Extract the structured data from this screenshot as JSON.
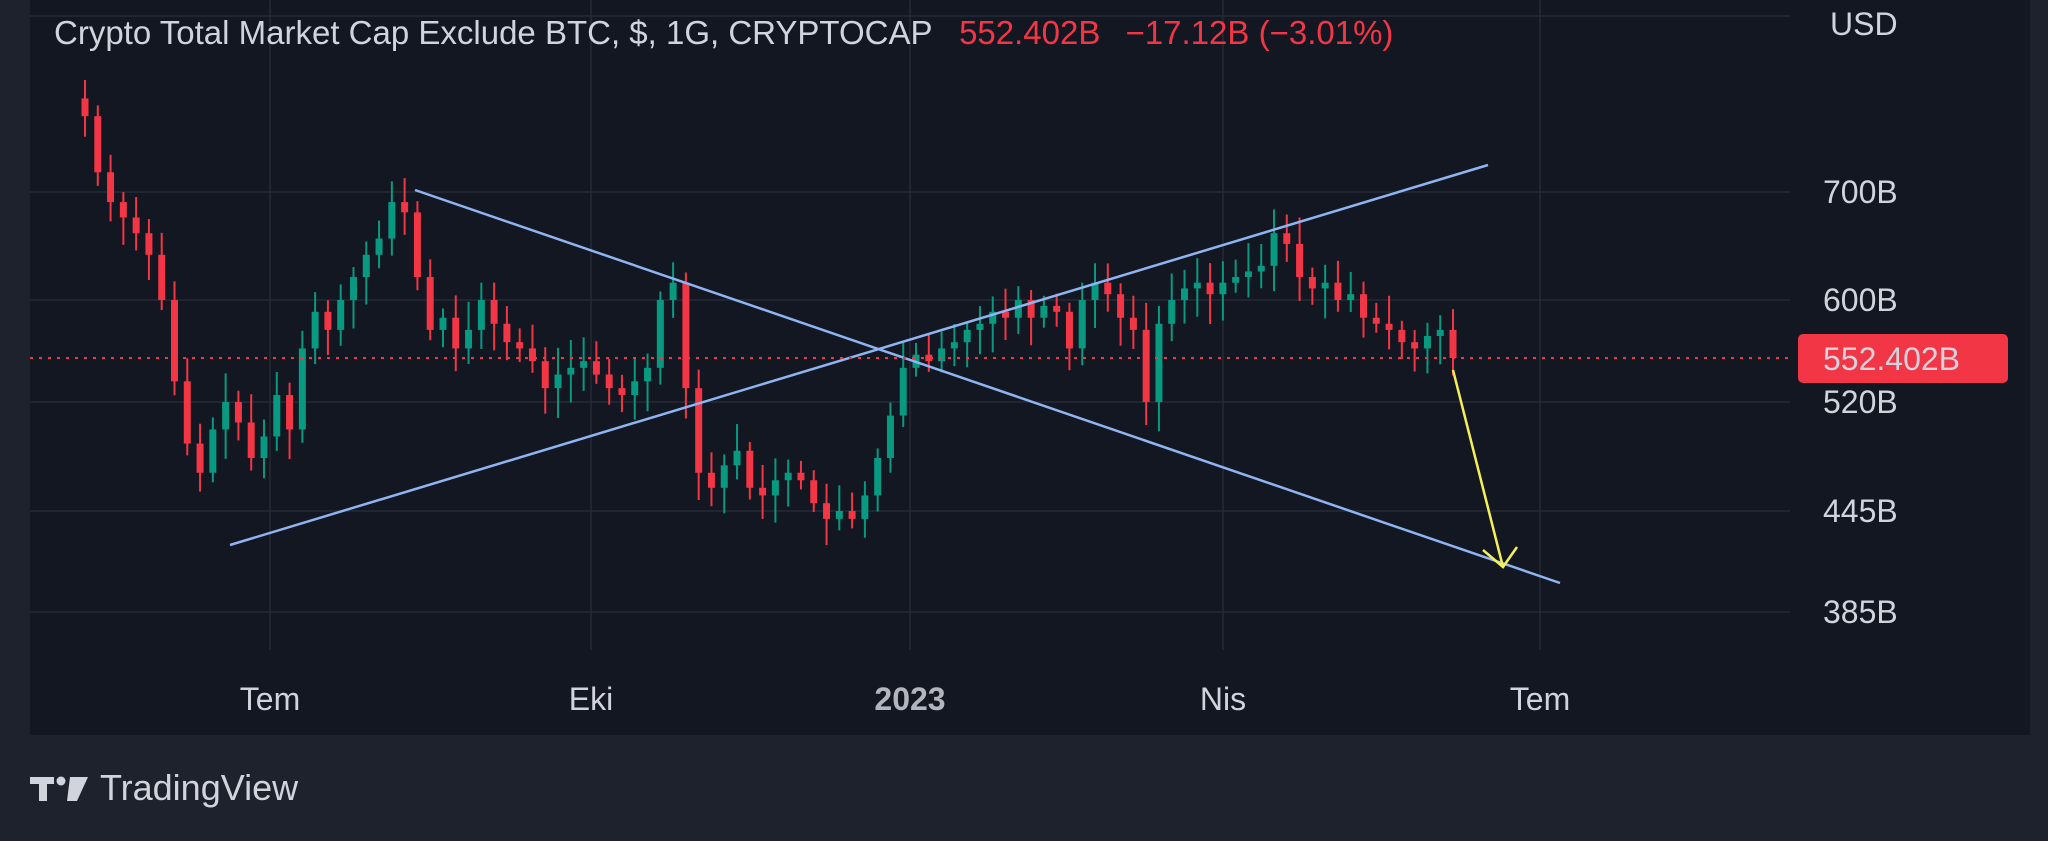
{
  "legend": {
    "symbol": "Crypto Total Market Cap Exclude BTC, $, 1G, CRYPTOCAP",
    "last_value": "552.402B",
    "change": "−17.12B (−3.01%)"
  },
  "price_scale": {
    "currency": "USD",
    "last_price_label": "552.402B"
  },
  "footer": {
    "brand": "TradingView"
  },
  "colors": {
    "up": "#089981",
    "down": "#f23645",
    "trendline": "#8fb4f2",
    "arrow": "#f5f05a",
    "background": "#131722",
    "grid": "#242a36"
  },
  "chart_data": {
    "type": "candlestick",
    "title": "Crypto Total Market Cap Exclude BTC, $, 1G, CRYPTOCAP",
    "last_value": 552.402,
    "x_ticks": [
      {
        "label": "Tem",
        "bold": false
      },
      {
        "label": "Eki",
        "bold": false
      },
      {
        "label": "2023",
        "bold": true
      },
      {
        "label": "Nis",
        "bold": false
      },
      {
        "label": "Tem",
        "bold": false
      }
    ],
    "y_ticks": [
      "700B",
      "600B",
      "520B",
      "445B",
      "385B"
    ],
    "y_unit": "USD",
    "grid": true,
    "close_series": [
      780,
      720,
      690,
      675,
      660,
      640,
      600,
      535,
      490,
      470,
      500,
      520,
      505,
      480,
      495,
      525,
      500,
      560,
      590,
      575,
      600,
      620,
      640,
      655,
      690,
      680,
      620,
      575,
      585,
      560,
      575,
      600,
      580,
      565,
      560,
      550,
      530,
      540,
      545,
      550,
      540,
      530,
      525,
      535,
      545,
      600,
      615,
      530,
      470,
      460,
      475,
      485,
      460,
      455,
      465,
      470,
      465,
      450,
      440,
      445,
      440,
      455,
      480,
      510,
      545,
      555,
      550,
      560,
      565,
      575,
      580,
      590,
      585,
      600,
      585,
      595,
      590,
      560,
      600,
      615,
      605,
      585,
      575,
      520,
      580,
      600,
      610,
      615,
      605,
      615,
      620,
      625,
      630,
      660,
      650,
      620,
      610,
      615,
      600,
      605,
      585,
      580,
      575,
      565,
      560,
      570,
      575,
      552.402
    ],
    "trendlines": [
      {
        "from": [
          "Ağu (erken)",
          700
        ],
        "to": [
          "Haz",
          415
        ]
      },
      {
        "from": [
          "Tem (erken)",
          420
        ],
        "to": [
          "Haz",
          720
        ]
      }
    ],
    "projection_arrow": {
      "from": 552.402,
      "to": 425
    }
  }
}
